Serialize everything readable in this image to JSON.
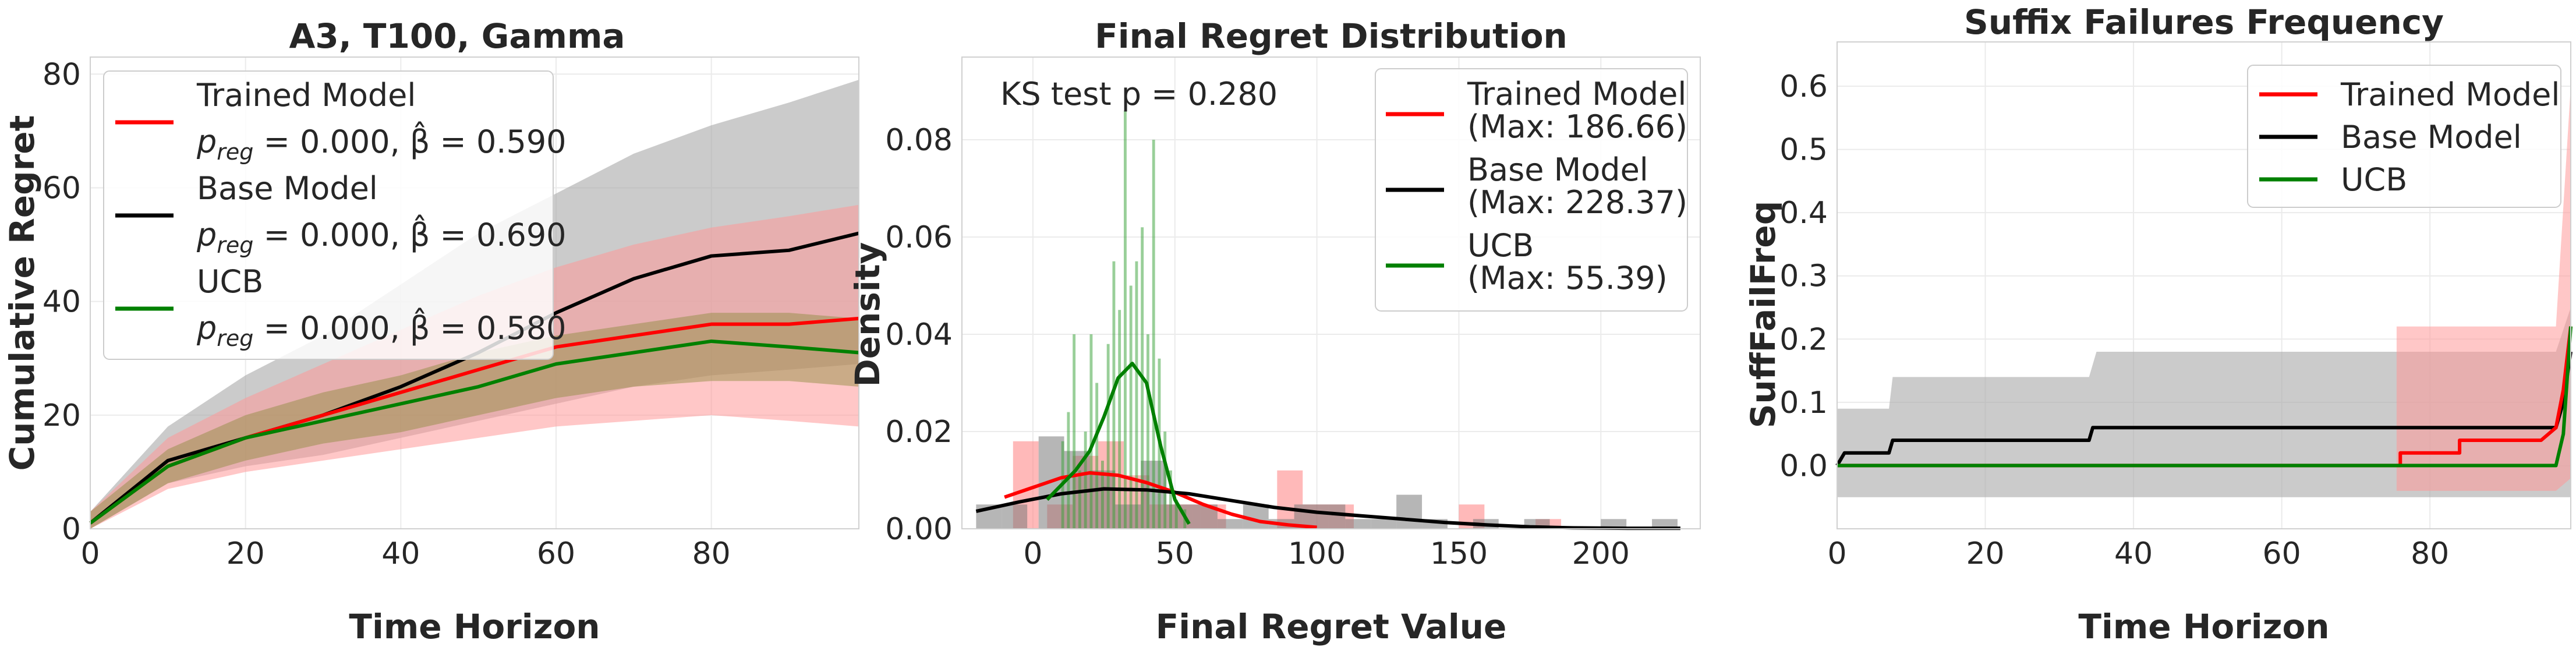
{
  "colors": {
    "trained": "#ff0000",
    "base": "#000000",
    "ucb": "#008000",
    "trained_fill": "#ffaaaa",
    "base_fill": "#bdbdbd"
  },
  "chart_data": [
    {
      "type": "line",
      "title": "A3, T100, Gamma",
      "xlabel": "Time Horizon",
      "ylabel": "Cumulative Regret",
      "xlim": [
        0,
        99
      ],
      "ylim": [
        0,
        83
      ],
      "xticks": [
        "0",
        "20",
        "40",
        "60",
        "80"
      ],
      "yticks": [
        "0",
        "20",
        "40",
        "60",
        "80"
      ],
      "x": [
        0,
        10,
        20,
        30,
        40,
        50,
        60,
        70,
        80,
        90,
        99
      ],
      "series": [
        {
          "name": "Trained Model",
          "line1": "Trained Model",
          "line2": "p_reg = 0.000, β̂ = 0.590",
          "color": "red",
          "values": [
            1,
            11,
            16,
            20,
            24,
            28,
            32,
            34,
            36,
            36,
            37
          ],
          "lower": [
            0,
            7,
            10,
            12,
            14,
            16,
            18,
            19,
            20,
            19,
            18
          ],
          "upper": [
            3,
            16,
            23,
            29,
            35,
            41,
            46,
            50,
            53,
            55,
            57
          ]
        },
        {
          "name": "Base Model",
          "line1": "Base Model",
          "line2": "p_reg = 0.000, β̂ = 0.690",
          "color": "black",
          "values": [
            1,
            12,
            16,
            20,
            25,
            31,
            38,
            44,
            48,
            49,
            52
          ],
          "lower": [
            0,
            8,
            11,
            13,
            16,
            19,
            22,
            25,
            27,
            28,
            29
          ],
          "upper": [
            3,
            18,
            27,
            34,
            43,
            52,
            59,
            66,
            71,
            75,
            79
          ]
        },
        {
          "name": "UCB",
          "line1": "UCB",
          "line2": "p_reg = 0.000, β̂ = 0.580",
          "color": "green",
          "values": [
            1,
            11,
            16,
            19,
            22,
            25,
            29,
            31,
            33,
            32,
            31
          ],
          "lower": [
            0,
            8,
            12,
            15,
            17,
            20,
            23,
            25,
            26,
            26,
            25
          ],
          "upper": [
            3,
            14,
            20,
            24,
            27,
            31,
            34,
            36,
            38,
            38,
            37
          ]
        }
      ]
    },
    {
      "type": "histogram",
      "title": "Final Regret Distribution",
      "xlabel": "Final Regret Value",
      "ylabel": "Density",
      "xlim": [
        -25,
        235
      ],
      "ylim": [
        0,
        0.097
      ],
      "xticks": [
        "0",
        "50",
        "100",
        "150",
        "200"
      ],
      "yticks": [
        "0.00",
        "0.02",
        "0.04",
        "0.06",
        "0.08"
      ],
      "annotation": "KS test p = 0.280",
      "series": [
        {
          "name": "Trained Model",
          "line1": "Trained Model",
          "line2": "(Max: 186.66)",
          "color": "red",
          "bins": [
            [
              -7,
              2,
              0.018
            ],
            [
              5,
              14,
              0.005
            ],
            [
              14,
              23,
              0.015
            ],
            [
              23,
              32,
              0.018
            ],
            [
              32,
              41,
              0.011
            ],
            [
              41,
              50,
              0.005
            ],
            [
              50,
              59,
              0.005
            ],
            [
              59,
              68,
              0.005
            ],
            [
              86,
              95,
              0.012
            ],
            [
              95,
              104,
              0.005
            ],
            [
              104,
              113,
              0.005
            ],
            [
              150,
              159,
              0.005
            ],
            [
              177,
              186,
              0.002
            ]
          ],
          "kde": [
            [
              -10,
              0.0065
            ],
            [
              0,
              0.0085
            ],
            [
              10,
              0.0105
            ],
            [
              20,
              0.0115
            ],
            [
              30,
              0.011
            ],
            [
              40,
              0.0095
            ],
            [
              50,
              0.0075
            ],
            [
              60,
              0.005
            ],
            [
              70,
              0.003
            ],
            [
              80,
              0.0015
            ],
            [
              90,
              0.0008
            ],
            [
              100,
              0.0003
            ]
          ]
        },
        {
          "name": "Base Model",
          "line1": "Base Model",
          "line2": "(Max: 228.37)",
          "color": "black",
          "bins": [
            [
              -20,
              -11,
              0.005
            ],
            [
              -11,
              -2,
              0.005
            ],
            [
              2,
              11,
              0.019
            ],
            [
              11,
              20,
              0.016
            ],
            [
              20,
              29,
              0.012
            ],
            [
              29,
              38,
              0.005
            ],
            [
              38,
              47,
              0.014
            ],
            [
              47,
              56,
              0.005
            ],
            [
              56,
              65,
              0.005
            ],
            [
              65,
              74,
              0.002
            ],
            [
              74,
              83,
              0.005
            ],
            [
              83,
              92,
              0.002
            ],
            [
              92,
              101,
              0.005
            ],
            [
              101,
              110,
              0.005
            ],
            [
              110,
              119,
              0.002
            ],
            [
              119,
              128,
              0.002
            ],
            [
              128,
              137,
              0.007
            ],
            [
              137,
              146,
              0.002
            ],
            [
              155,
              164,
              0.002
            ],
            [
              173,
              182,
              0.002
            ],
            [
              200,
              209,
              0.002
            ],
            [
              218,
              227,
              0.002
            ]
          ],
          "kde": [
            [
              -20,
              0.0036
            ],
            [
              -5,
              0.0055
            ],
            [
              10,
              0.0072
            ],
            [
              25,
              0.0082
            ],
            [
              40,
              0.008
            ],
            [
              55,
              0.0072
            ],
            [
              70,
              0.0058
            ],
            [
              85,
              0.0044
            ],
            [
              100,
              0.0034
            ],
            [
              115,
              0.0027
            ],
            [
              130,
              0.002
            ],
            [
              145,
              0.0013
            ],
            [
              160,
              0.0008
            ],
            [
              175,
              0.0004
            ],
            [
              190,
              0.0002
            ],
            [
              210,
              0.0001
            ],
            [
              228,
              0.0001
            ]
          ]
        },
        {
          "name": "UCB",
          "line1": "UCB",
          "line2": "(Max: 55.39)",
          "color": "green",
          "bins": [
            [
              10,
              11,
              0.018
            ],
            [
              12,
              13,
              0.024
            ],
            [
              14,
              15,
              0.04
            ],
            [
              16,
              17,
              0.012
            ],
            [
              18,
              19,
              0.02
            ],
            [
              20,
              21,
              0.04
            ],
            [
              22,
              23,
              0.03
            ],
            [
              24,
              25,
              0.014
            ],
            [
              26,
              27,
              0.038
            ],
            [
              28,
              29,
              0.055
            ],
            [
              30,
              31,
              0.045
            ],
            [
              32,
              33,
              0.086
            ],
            [
              34,
              35,
              0.05
            ],
            [
              36,
              37,
              0.055
            ],
            [
              38,
              39,
              0.062
            ],
            [
              40,
              41,
              0.04
            ],
            [
              42,
              43,
              0.08
            ],
            [
              44,
              45,
              0.035
            ],
            [
              46,
              47,
              0.02
            ],
            [
              48,
              49,
              0.012
            ],
            [
              50,
              51,
              0.006
            ],
            [
              53,
              54,
              0.004
            ]
          ],
          "kde": [
            [
              5,
              0.006
            ],
            [
              10,
              0.009
            ],
            [
              15,
              0.012
            ],
            [
              20,
              0.016
            ],
            [
              25,
              0.023
            ],
            [
              30,
              0.031
            ],
            [
              35,
              0.034
            ],
            [
              40,
              0.03
            ],
            [
              45,
              0.017
            ],
            [
              50,
              0.006
            ],
            [
              55,
              0.001
            ]
          ]
        }
      ]
    },
    {
      "type": "line",
      "title": "Suffix Failures Frequency",
      "xlabel": "Time Horizon",
      "ylabel": "SuffFailFreq",
      "xlim": [
        0,
        99
      ],
      "ylim": [
        -0.1,
        0.67
      ],
      "xticks": [
        "0",
        "20",
        "40",
        "60",
        "80"
      ],
      "yticks": [
        "0.0",
        "0.1",
        "0.2",
        "0.3",
        "0.4",
        "0.5",
        "0.6"
      ],
      "series": [
        {
          "name": "Trained Model",
          "line1": "Trained Model",
          "color": "red",
          "points": [
            [
              0,
              0
            ],
            [
              76,
              0
            ],
            [
              76,
              0.02
            ],
            [
              84,
              0.02
            ],
            [
              84,
              0.04
            ],
            [
              95,
              0.04
            ],
            [
              97,
              0.06
            ],
            [
              98,
              0.12
            ],
            [
              99,
              0.22
            ]
          ],
          "band": [
            [
              0,
              0,
              0
            ],
            [
              75.5,
              0,
              0
            ],
            [
              75.5,
              -0.04,
              0.22
            ],
            [
              97,
              -0.04,
              0.22
            ],
            [
              99,
              -0.02,
              0.6
            ]
          ]
        },
        {
          "name": "Base Model",
          "line1": "Base Model",
          "color": "black",
          "points": [
            [
              0,
              0
            ],
            [
              1,
              0.02
            ],
            [
              7,
              0.02
            ],
            [
              7.5,
              0.04
            ],
            [
              34,
              0.04
            ],
            [
              34.5,
              0.06
            ],
            [
              97,
              0.06
            ],
            [
              98,
              0.1
            ],
            [
              99,
              0.18
            ]
          ],
          "band": [
            [
              0,
              -0.05,
              0.09
            ],
            [
              7,
              -0.05,
              0.09
            ],
            [
              7.5,
              -0.05,
              0.14
            ],
            [
              34,
              -0.05,
              0.14
            ],
            [
              35,
              -0.05,
              0.18
            ],
            [
              97,
              -0.05,
              0.18
            ],
            [
              99,
              -0.05,
              0.25
            ]
          ]
        },
        {
          "name": "UCB",
          "line1": "UCB",
          "color": "green",
          "points": [
            [
              0,
              0
            ],
            [
              97,
              0
            ],
            [
              98,
              0.05
            ],
            [
              99,
              0.22
            ]
          ],
          "band": [
            [
              0,
              0,
              0
            ],
            [
              99,
              0,
              0
            ]
          ]
        }
      ]
    }
  ]
}
